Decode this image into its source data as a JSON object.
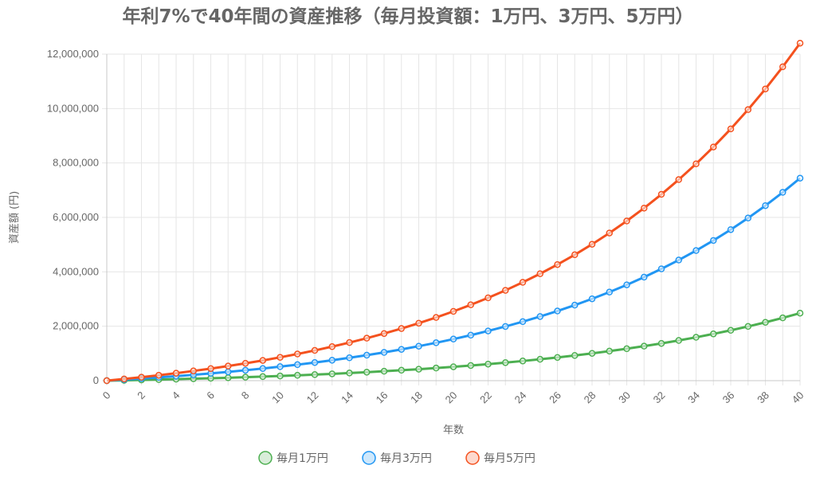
{
  "chart_data": {
    "type": "line",
    "title": "年利7%で40年間の資産推移（毎月投資額：1万円、3万円、5万円）",
    "xlabel": "年数",
    "ylabel": "資産額 (円)",
    "xlim": [
      0,
      40
    ],
    "ylim": [
      0,
      12000000
    ],
    "x_ticks": [
      "0",
      "2",
      "4",
      "6",
      "8",
      "10",
      "12",
      "14",
      "16",
      "18",
      "20",
      "22",
      "24",
      "26",
      "28",
      "30",
      "32",
      "34",
      "36",
      "38",
      "40"
    ],
    "y_ticks": [
      "0",
      "2,000,000",
      "4,000,000",
      "6,000,000",
      "8,000,000",
      "10,000,000",
      "12,000,000"
    ],
    "grid": true,
    "legend_position": "bottom",
    "x": [
      0,
      1,
      2,
      3,
      4,
      5,
      6,
      7,
      8,
      9,
      10,
      11,
      12,
      13,
      14,
      15,
      16,
      17,
      18,
      19,
      20,
      21,
      22,
      23,
      24,
      25,
      26,
      27,
      28,
      29,
      30,
      31,
      32,
      33,
      34,
      35,
      36,
      37,
      38,
      39,
      40
    ],
    "series": [
      {
        "name": "毎月1万円",
        "color": "#4caf50",
        "values": [
          0,
          12396,
          25667,
          39871,
          55071,
          71354,
          88780,
          107425,
          127376,
          148730,
          171557,
          195998,
          222147,
          250126,
          280067,
          312107,
          346389,
          383071,
          422320,
          464319,
          509256,
          557340,
          608790,
          663838,
          722747,
          785770,
          853209,
          925376,
          1002597,
          1085220,
          1173626,
          1268227,
          1369453,
          1477762,
          1593653,
          1717656,
          1850342,
          1992317,
          2144232,
          2306791,
          2480722
        ]
      },
      {
        "name": "毎月3万円",
        "color": "#2196f3",
        "values": [
          0,
          37187,
          77000,
          119614,
          165213,
          214061,
          266340,
          322275,
          382128,
          446189,
          514670,
          587994,
          666441,
          750379,
          840200,
          936320,
          1039167,
          1149213,
          1266961,
          1392956,
          1527768,
          1672020,
          1826370,
          1991515,
          2168241,
          2357310,
          2559626,
          2776128,
          3007790,
          3255660,
          3520877,
          3804680,
          4108359,
          4433285,
          4780959,
          5152968,
          5551025,
          5976949,
          6432696,
          6920372,
          7442166
        ]
      },
      {
        "name": "毎月5万円",
        "color": "#f4511e",
        "values": [
          0,
          61979,
          128334,
          199357,
          275355,
          356769,
          443901,
          537124,
          636881,
          743648,
          857784,
          979990,
          1110735,
          1250632,
          1400333,
          1560533,
          1731945,
          1915355,
          2111601,
          2321594,
          2546280,
          2786700,
          3043950,
          3319192,
          3613735,
          3928850,
          4266044,
          4626880,
          5012984,
          5426100,
          5868128,
          6341134,
          6847265,
          7388808,
          7968265,
          8588281,
          9251708,
          9961581,
          10721160,
          11533953,
          12403610
        ]
      }
    ]
  }
}
